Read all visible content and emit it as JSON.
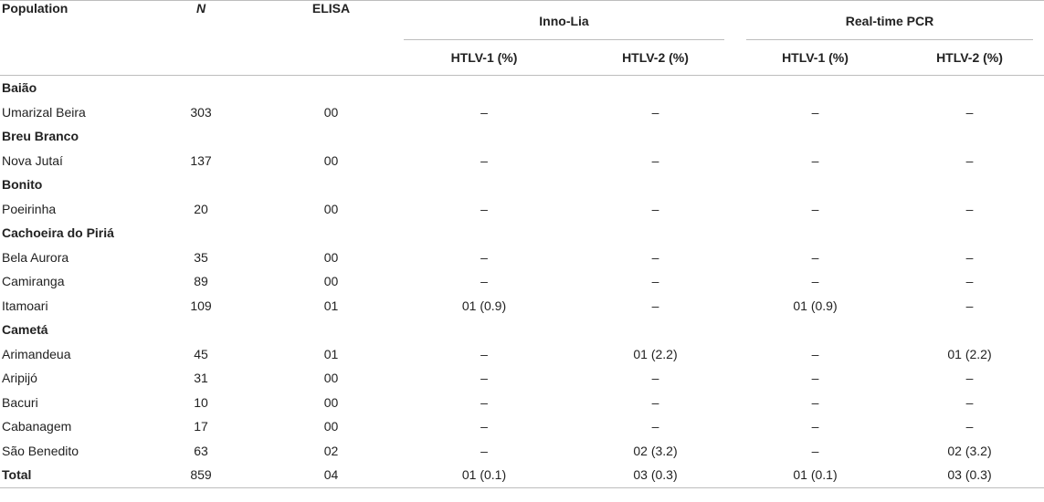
{
  "header": {
    "population": "Population",
    "n": "N",
    "elisa": "ELISA",
    "inno_lia": "Inno-Lia",
    "realtime_pcr": "Real-time PCR",
    "htlv1": "HTLV-1 (%)",
    "htlv2": "HTLV-2 (%)"
  },
  "rows": [
    {
      "type": "group",
      "name": "Baião"
    },
    {
      "type": "data",
      "name": "Umarizal Beira",
      "n": "303",
      "elisa": "00",
      "lia1": "–",
      "lia2": "–",
      "pcr1": "–",
      "pcr2": "–"
    },
    {
      "type": "group",
      "name": "Breu Branco"
    },
    {
      "type": "data",
      "name": "Nova Jutaí",
      "n": "137",
      "elisa": "00",
      "lia1": "–",
      "lia2": "–",
      "pcr1": "–",
      "pcr2": "–"
    },
    {
      "type": "group",
      "name": "Bonito"
    },
    {
      "type": "data",
      "name": "Poeirinha",
      "n": "20",
      "elisa": "00",
      "lia1": "–",
      "lia2": "–",
      "pcr1": "–",
      "pcr2": "–"
    },
    {
      "type": "group",
      "name": "Cachoeira do Piriá"
    },
    {
      "type": "data",
      "name": "Bela Aurora",
      "n": "35",
      "elisa": "00",
      "lia1": "–",
      "lia2": "–",
      "pcr1": "–",
      "pcr2": "–"
    },
    {
      "type": "data",
      "name": "Camiranga",
      "n": "89",
      "elisa": "00",
      "lia1": "–",
      "lia2": "–",
      "pcr1": "–",
      "pcr2": "–"
    },
    {
      "type": "data",
      "name": "Itamoari",
      "n": "109",
      "elisa": "01",
      "lia1": "01 (0.9)",
      "lia2": "–",
      "pcr1": "01 (0.9)",
      "pcr2": "–"
    },
    {
      "type": "group",
      "name": "Cametá"
    },
    {
      "type": "data",
      "name": "Arimandeua",
      "n": "45",
      "elisa": "01",
      "lia1": "–",
      "lia2": "01 (2.2)",
      "pcr1": "–",
      "pcr2": "01 (2.2)"
    },
    {
      "type": "data",
      "name": "Aripijó",
      "n": "31",
      "elisa": "00",
      "lia1": "–",
      "lia2": "–",
      "pcr1": "–",
      "pcr2": "–"
    },
    {
      "type": "data",
      "name": "Bacuri",
      "n": "10",
      "elisa": "00",
      "lia1": "–",
      "lia2": "–",
      "pcr1": "–",
      "pcr2": "–"
    },
    {
      "type": "data",
      "name": "Cabanagem",
      "n": "17",
      "elisa": "00",
      "lia1": "–",
      "lia2": "–",
      "pcr1": "–",
      "pcr2": "–"
    },
    {
      "type": "data",
      "name": "São Benedito",
      "n": "63",
      "elisa": "02",
      "lia1": "–",
      "lia2": "02 (3.2)",
      "pcr1": "–",
      "pcr2": "02 (3.2)"
    },
    {
      "type": "total",
      "name": "Total",
      "n": "859",
      "elisa": "04",
      "lia1": "01 (0.1)",
      "lia2": "03 (0.3)",
      "pcr1": "01 (0.1)",
      "pcr2": "03 (0.3)"
    }
  ]
}
